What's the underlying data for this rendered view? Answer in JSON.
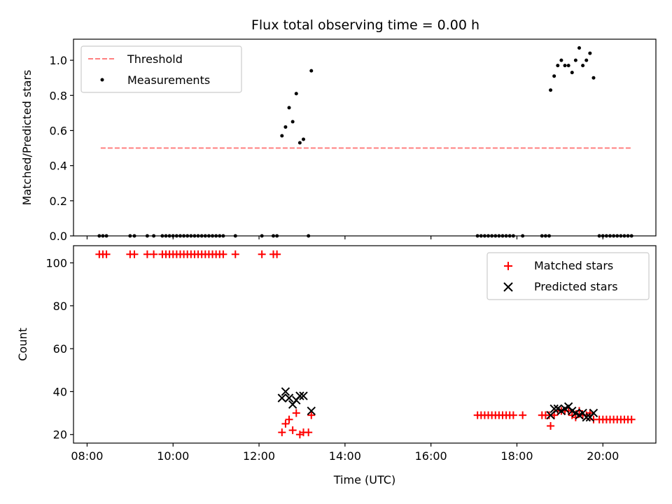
{
  "chart_data": [
    {
      "type": "scatter",
      "title": "Flux total observing time = 0.00 h",
      "xlabel": "",
      "ylabel": "Matched/Predicted stars",
      "xlim": [
        "07:41",
        "21:14"
      ],
      "ylim": [
        0,
        1.12
      ],
      "x_ticks": [
        "08:00",
        "10:00",
        "12:00",
        "14:00",
        "16:00",
        "18:00",
        "20:00"
      ],
      "y_ticks": [
        0.0,
        0.2,
        0.4,
        0.6,
        0.8,
        1.0
      ],
      "y_tick_labels": [
        "0.0",
        "0.2",
        "0.4",
        "0.6",
        "0.8",
        "1.0"
      ],
      "legend": {
        "placement": "top-left",
        "entries": [
          {
            "label": "Threshold",
            "color": "#ff7f7f",
            "style": "dashed-line"
          },
          {
            "label": "Measurements",
            "color": "#000000",
            "style": "dot"
          }
        ]
      },
      "threshold": {
        "name": "Threshold",
        "y": 0.5,
        "x_start": "08:19",
        "x_end": "20:40",
        "color": "#ff7f7f"
      },
      "series": [
        {
          "name": "Measurements",
          "color": "#000000",
          "points": [
            [
              "08:17",
              0
            ],
            [
              "08:22",
              0
            ],
            [
              "08:27",
              0
            ],
            [
              "09:00",
              0
            ],
            [
              "09:06",
              0
            ],
            [
              "09:24",
              0
            ],
            [
              "09:33",
              0
            ],
            [
              "09:45",
              0
            ],
            [
              "09:50",
              0
            ],
            [
              "09:55",
              0
            ],
            [
              "10:00",
              0
            ],
            [
              "10:05",
              0
            ],
            [
              "10:10",
              0
            ],
            [
              "10:15",
              0
            ],
            [
              "10:20",
              0
            ],
            [
              "10:25",
              0
            ],
            [
              "10:30",
              0
            ],
            [
              "10:35",
              0
            ],
            [
              "10:40",
              0
            ],
            [
              "10:45",
              0
            ],
            [
              "10:50",
              0
            ],
            [
              "10:55",
              0
            ],
            [
              "11:00",
              0
            ],
            [
              "11:05",
              0
            ],
            [
              "11:10",
              0
            ],
            [
              "11:27",
              0
            ],
            [
              "12:04",
              0
            ],
            [
              "12:20",
              0
            ],
            [
              "12:25",
              0
            ],
            [
              "13:09",
              0
            ],
            [
              "12:32",
              0.57
            ],
            [
              "12:37",
              0.62
            ],
            [
              "12:42",
              0.73
            ],
            [
              "12:47",
              0.65
            ],
            [
              "12:52",
              0.81
            ],
            [
              "12:57",
              0.53
            ],
            [
              "13:02",
              0.55
            ],
            [
              "13:13",
              0.94
            ],
            [
              "17:05",
              0
            ],
            [
              "17:10",
              0
            ],
            [
              "17:15",
              0
            ],
            [
              "17:20",
              0
            ],
            [
              "17:25",
              0
            ],
            [
              "17:30",
              0
            ],
            [
              "17:35",
              0
            ],
            [
              "17:40",
              0
            ],
            [
              "17:45",
              0
            ],
            [
              "17:50",
              0
            ],
            [
              "17:55",
              0
            ],
            [
              "18:08",
              0
            ],
            [
              "18:35",
              0
            ],
            [
              "18:40",
              0
            ],
            [
              "18:45",
              0
            ],
            [
              "18:47",
              0.83
            ],
            [
              "18:52",
              0.91
            ],
            [
              "18:57",
              0.97
            ],
            [
              "19:02",
              1.0
            ],
            [
              "19:07",
              0.97
            ],
            [
              "19:12",
              0.97
            ],
            [
              "19:17",
              0.93
            ],
            [
              "19:22",
              1.0
            ],
            [
              "19:27",
              1.07
            ],
            [
              "19:32",
              0.97
            ],
            [
              "19:37",
              1.0
            ],
            [
              "19:42",
              1.04
            ],
            [
              "19:47",
              0.9
            ],
            [
              "19:55",
              0
            ],
            [
              "20:00",
              0
            ],
            [
              "20:05",
              0
            ],
            [
              "20:10",
              0
            ],
            [
              "20:15",
              0
            ],
            [
              "20:20",
              0
            ],
            [
              "20:25",
              0
            ],
            [
              "20:30",
              0
            ],
            [
              "20:35",
              0
            ],
            [
              "20:40",
              0
            ]
          ]
        }
      ]
    },
    {
      "type": "scatter",
      "title": "",
      "xlabel": "Time (UTC)",
      "ylabel": "Count",
      "xlim": [
        "07:41",
        "21:14"
      ],
      "ylim": [
        16,
        108
      ],
      "x_ticks": [
        "08:00",
        "10:00",
        "12:00",
        "14:00",
        "16:00",
        "18:00",
        "20:00"
      ],
      "y_ticks": [
        20,
        40,
        60,
        80,
        100
      ],
      "legend": {
        "placement": "top-right",
        "entries": [
          {
            "label": "Matched stars",
            "color": "#ff0000",
            "style": "plus"
          },
          {
            "label": "Predicted stars",
            "color": "#000000",
            "style": "x"
          }
        ]
      },
      "series": [
        {
          "name": "Matched stars",
          "color": "#ff0000",
          "marker": "plus",
          "points": [
            [
              "08:17",
              104
            ],
            [
              "08:22",
              104
            ],
            [
              "08:27",
              104
            ],
            [
              "09:00",
              104
            ],
            [
              "09:06",
              104
            ],
            [
              "09:24",
              104
            ],
            [
              "09:33",
              104
            ],
            [
              "09:45",
              104
            ],
            [
              "09:50",
              104
            ],
            [
              "09:55",
              104
            ],
            [
              "10:00",
              104
            ],
            [
              "10:05",
              104
            ],
            [
              "10:10",
              104
            ],
            [
              "10:15",
              104
            ],
            [
              "10:20",
              104
            ],
            [
              "10:25",
              104
            ],
            [
              "10:30",
              104
            ],
            [
              "10:35",
              104
            ],
            [
              "10:40",
              104
            ],
            [
              "10:45",
              104
            ],
            [
              "10:50",
              104
            ],
            [
              "10:55",
              104
            ],
            [
              "11:00",
              104
            ],
            [
              "11:05",
              104
            ],
            [
              "11:10",
              104
            ],
            [
              "11:27",
              104
            ],
            [
              "12:04",
              104
            ],
            [
              "12:20",
              104
            ],
            [
              "12:25",
              104
            ],
            [
              "12:32",
              21
            ],
            [
              "12:37",
              25
            ],
            [
              "12:42",
              27
            ],
            [
              "12:47",
              22
            ],
            [
              "12:52",
              30
            ],
            [
              "12:57",
              20
            ],
            [
              "13:02",
              21
            ],
            [
              "13:09",
              21
            ],
            [
              "13:13",
              29
            ],
            [
              "17:05",
              29
            ],
            [
              "17:10",
              29
            ],
            [
              "17:15",
              29
            ],
            [
              "17:20",
              29
            ],
            [
              "17:25",
              29
            ],
            [
              "17:30",
              29
            ],
            [
              "17:35",
              29
            ],
            [
              "17:40",
              29
            ],
            [
              "17:45",
              29
            ],
            [
              "17:50",
              29
            ],
            [
              "17:55",
              29
            ],
            [
              "18:08",
              29
            ],
            [
              "18:35",
              29
            ],
            [
              "18:40",
              29
            ],
            [
              "18:45",
              29
            ],
            [
              "18:47",
              24
            ],
            [
              "18:52",
              29
            ],
            [
              "18:57",
              31
            ],
            [
              "19:02",
              31
            ],
            [
              "19:07",
              31
            ],
            [
              "19:12",
              31
            ],
            [
              "19:17",
              29
            ],
            [
              "19:22",
              28
            ],
            [
              "19:27",
              31
            ],
            [
              "19:32",
              29
            ],
            [
              "19:37",
              29
            ],
            [
              "19:42",
              30
            ],
            [
              "19:47",
              27
            ],
            [
              "19:55",
              27
            ],
            [
              "20:00",
              27
            ],
            [
              "20:05",
              27
            ],
            [
              "20:10",
              27
            ],
            [
              "20:15",
              27
            ],
            [
              "20:20",
              27
            ],
            [
              "20:25",
              27
            ],
            [
              "20:30",
              27
            ],
            [
              "20:35",
              27
            ],
            [
              "20:40",
              27
            ]
          ]
        },
        {
          "name": "Predicted stars",
          "color": "#000000",
          "marker": "x",
          "points": [
            [
              "12:32",
              37
            ],
            [
              "12:37",
              40
            ],
            [
              "12:42",
              37
            ],
            [
              "12:47",
              34
            ],
            [
              "12:52",
              36
            ],
            [
              "12:57",
              38
            ],
            [
              "13:02",
              38
            ],
            [
              "13:13",
              31
            ],
            [
              "18:47",
              29
            ],
            [
              "18:52",
              32
            ],
            [
              "18:57",
              32
            ],
            [
              "19:02",
              31
            ],
            [
              "19:07",
              32
            ],
            [
              "19:12",
              33
            ],
            [
              "19:17",
              31
            ],
            [
              "19:22",
              30
            ],
            [
              "19:27",
              29
            ],
            [
              "19:32",
              30
            ],
            [
              "19:37",
              28
            ],
            [
              "19:42",
              28
            ],
            [
              "19:47",
              30
            ]
          ]
        }
      ]
    }
  ]
}
